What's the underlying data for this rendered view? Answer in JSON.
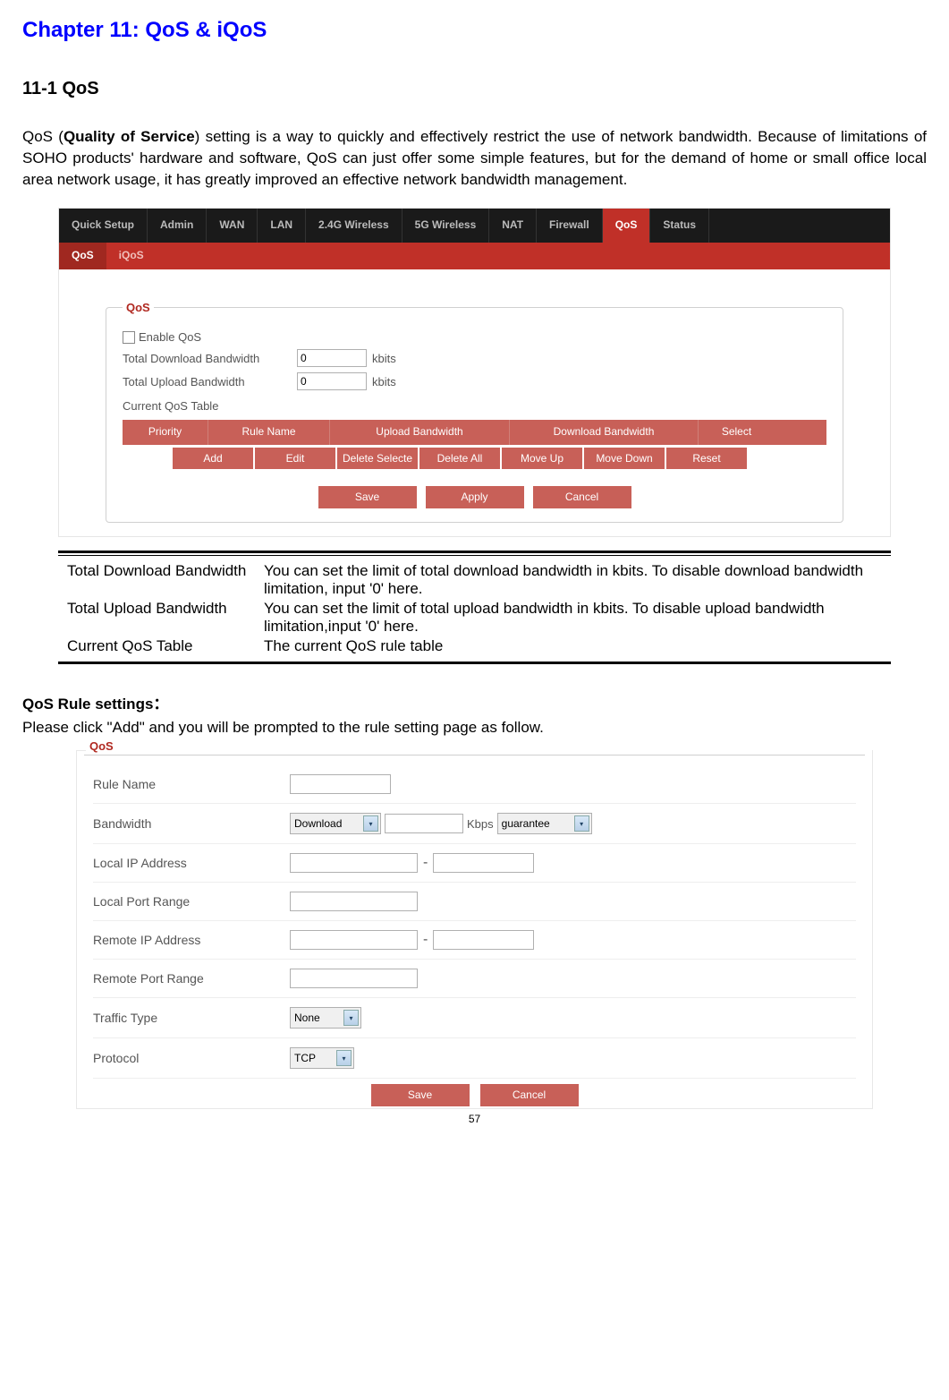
{
  "chapter": {
    "title": "Chapter 11: QoS & iQoS"
  },
  "section": {
    "title": "11-1 QoS"
  },
  "intro": {
    "prefix": "QoS (",
    "bold": "Quality of Service",
    "rest": ") setting is a way to quickly and effectively restrict the use of network bandwidth. Because of limitations of SOHO products' hardware and software, QoS can just offer some simple features, but for the demand of home or small office local area network usage, it has greatly improved an effective network bandwidth management."
  },
  "router": {
    "tabs": [
      "Quick Setup",
      "Admin",
      "WAN",
      "LAN",
      "2.4G Wireless",
      "5G Wireless",
      "NAT",
      "Firewall",
      "QoS",
      "Status"
    ],
    "active_tab": "QoS",
    "subtabs": [
      "QoS",
      "iQoS"
    ],
    "active_subtab": "QoS",
    "fieldset_legend": "QoS",
    "enable_label": "Enable QoS",
    "download_label": "Total Download Bandwidth",
    "download_value": "0",
    "upload_label": "Total Upload Bandwidth",
    "upload_value": "0",
    "unit": "kbits",
    "table_title": "Current QoS Table",
    "table_headers": [
      "Priority",
      "Rule Name",
      "Upload Bandwidth",
      "Download Bandwidth",
      "Select"
    ],
    "header_widths": [
      95,
      135,
      200,
      210,
      85
    ],
    "row_buttons": [
      "Add",
      "Edit",
      "Delete Selecte",
      "Delete All",
      "Move Up",
      "Move Down",
      "Reset"
    ],
    "row_btn_width": 92,
    "bottom_buttons": [
      "Save",
      "Apply",
      "Cancel"
    ],
    "colors": {
      "dark_bg": "#1a1a1a",
      "red_primary": "#c03028",
      "red_light": "#c86058",
      "legend": "#b02820"
    }
  },
  "defs": [
    {
      "left": "Total Download Bandwidth",
      "right": "You can set the limit of total download bandwidth in kbits. To disable download bandwidth limitation, input '0' here."
    },
    {
      "left": "Total Upload Bandwidth",
      "right": "You can set the limit of total upload bandwidth in kbits. To disable upload bandwidth limitation,input  '0'  here."
    },
    {
      "left": "Current QoS Table",
      "right": "The current QoS rule table"
    }
  ],
  "rule_heading": "QoS Rule settings：",
  "rule_text": "Please click \"Add\" and you will be prompted to the rule setting page as follow.",
  "form": {
    "legend": "QoS",
    "rows": {
      "rule_name": "Rule Name",
      "bandwidth": "Bandwidth",
      "bw_dir": "Download",
      "bw_unit": "Kbps",
      "bw_mode": "guarantee",
      "local_ip": "Local IP Address",
      "local_port": "Local Port Range",
      "remote_ip": "Remote IP Address",
      "remote_port": "Remote Port Range",
      "traffic_type": "Traffic Type",
      "traffic_value": "None",
      "protocol": "Protocol",
      "protocol_value": "TCP"
    },
    "buttons": [
      "Save",
      "Cancel"
    ]
  },
  "page_number": "57"
}
